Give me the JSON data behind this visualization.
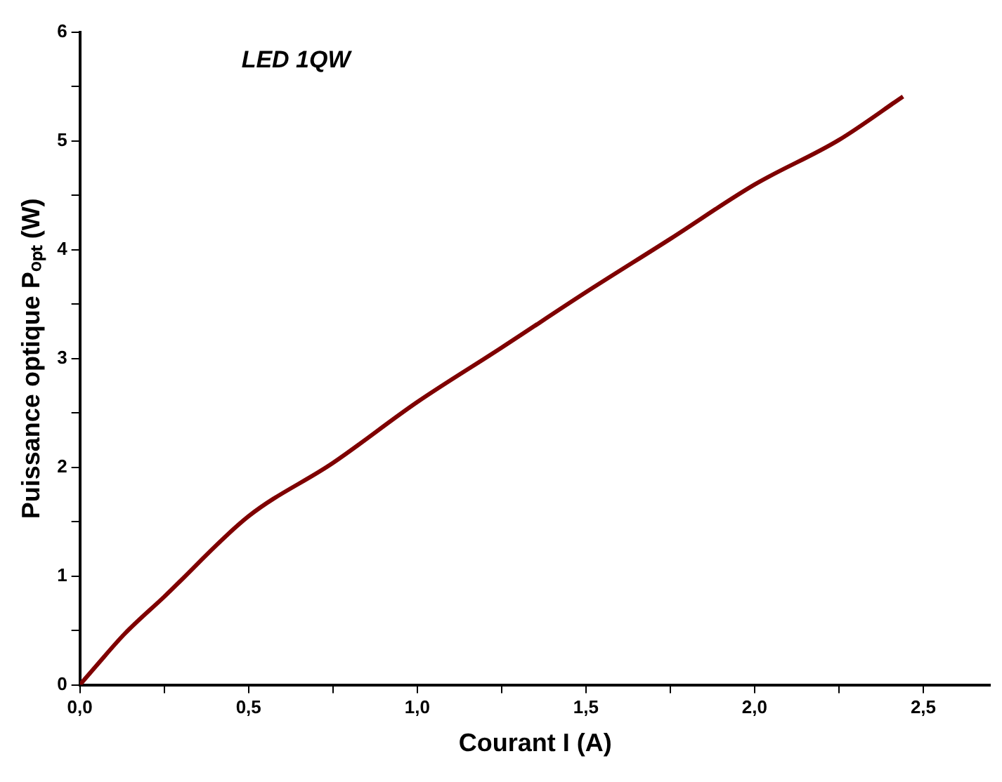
{
  "chart_data": {
    "type": "line",
    "annotations": [
      "LED 1QW"
    ],
    "xlabel": "Courant I (A)",
    "ylabel": "Puissance optique Pₒₚₜ (W)",
    "x": [
      0,
      0.05,
      0.133,
      0.25,
      0.5,
      0.75,
      1.0,
      1.25,
      1.5,
      1.75,
      2.0,
      2.25,
      2.44
    ],
    "series": [
      {
        "color": "#7f0000",
        "values": [
          0,
          0.18,
          0.47,
          0.81,
          1.55,
          2.04,
          2.6,
          3.1,
          3.61,
          4.1,
          4.6,
          5.01,
          5.41
        ]
      }
    ],
    "xlim": [
      0,
      2.7
    ],
    "xticks": [
      {
        "value": 0,
        "label": "0,0"
      },
      {
        "value": 0.25,
        "label": null
      },
      {
        "value": 0.5,
        "label": "0,5"
      },
      {
        "value": 0.75,
        "label": null
      },
      {
        "value": 1,
        "label": "1,0"
      },
      {
        "value": 1.25,
        "label": null
      },
      {
        "value": 1.5,
        "label": "1,5"
      },
      {
        "value": 1.75,
        "label": null
      },
      {
        "value": 2,
        "label": "2,0"
      },
      {
        "value": 2.25,
        "label": null
      },
      {
        "value": 2.5,
        "label": "2,5"
      }
    ],
    "ylim": [
      0,
      6
    ],
    "yticks": [
      0,
      {
        "value": 0.5,
        "label": null
      },
      1,
      {
        "value": 1.5,
        "label": null
      },
      2,
      {
        "value": 2.5,
        "label": null
      },
      3,
      {
        "value": 3.5,
        "label": null
      },
      4,
      {
        "value": 4.5,
        "label": null
      },
      5,
      {
        "value": 5.5,
        "label": null
      },
      6
    ],
    "grid": false,
    "legend": false,
    "marker": "none",
    "line_style": "solid"
  }
}
